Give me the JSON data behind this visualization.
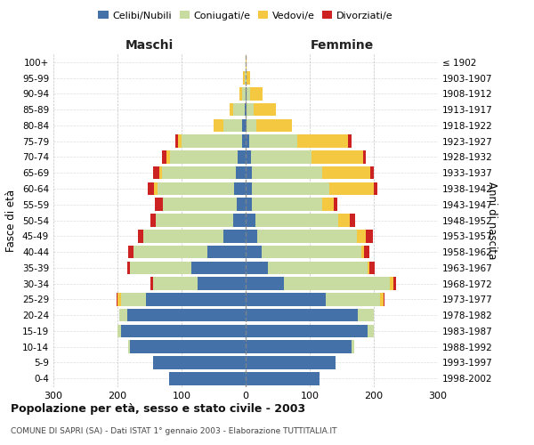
{
  "age_groups": [
    "0-4",
    "5-9",
    "10-14",
    "15-19",
    "20-24",
    "25-29",
    "30-34",
    "35-39",
    "40-44",
    "45-49",
    "50-54",
    "55-59",
    "60-64",
    "65-69",
    "70-74",
    "75-79",
    "80-84",
    "85-89",
    "90-94",
    "95-99",
    "100+"
  ],
  "birth_years": [
    "1998-2002",
    "1993-1997",
    "1988-1992",
    "1983-1987",
    "1978-1982",
    "1973-1977",
    "1968-1972",
    "1963-1967",
    "1958-1962",
    "1953-1957",
    "1948-1952",
    "1943-1947",
    "1938-1942",
    "1933-1937",
    "1928-1932",
    "1923-1927",
    "1918-1922",
    "1913-1917",
    "1908-1912",
    "1903-1907",
    "≤ 1902"
  ],
  "males": {
    "celibi": [
      120,
      145,
      180,
      195,
      185,
      155,
      75,
      85,
      60,
      35,
      20,
      14,
      18,
      15,
      13,
      5,
      5,
      2,
      0,
      0,
      0
    ],
    "coniugati": [
      0,
      0,
      3,
      5,
      12,
      40,
      70,
      95,
      115,
      125,
      120,
      115,
      120,
      115,
      105,
      95,
      30,
      18,
      5,
      2,
      0
    ],
    "vedovi": [
      0,
      0,
      0,
      0,
      0,
      5,
      0,
      0,
      0,
      0,
      0,
      0,
      5,
      5,
      5,
      5,
      15,
      5,
      5,
      2,
      0
    ],
    "divorziati": [
      0,
      0,
      0,
      0,
      0,
      2,
      3,
      5,
      8,
      8,
      8,
      12,
      10,
      10,
      8,
      5,
      0,
      0,
      0,
      0,
      0
    ]
  },
  "females": {
    "nubili": [
      115,
      140,
      165,
      190,
      175,
      125,
      60,
      35,
      25,
      18,
      15,
      10,
      10,
      10,
      8,
      5,
      2,
      2,
      2,
      0,
      0
    ],
    "coniugate": [
      0,
      0,
      5,
      10,
      25,
      85,
      165,
      155,
      155,
      155,
      130,
      110,
      120,
      110,
      95,
      75,
      15,
      10,
      5,
      2,
      0
    ],
    "vedove": [
      0,
      0,
      0,
      0,
      0,
      5,
      5,
      3,
      5,
      15,
      18,
      18,
      70,
      75,
      80,
      80,
      55,
      35,
      20,
      5,
      2
    ],
    "divorziate": [
      0,
      0,
      0,
      0,
      0,
      2,
      5,
      8,
      8,
      10,
      8,
      5,
      5,
      5,
      5,
      5,
      0,
      0,
      0,
      0,
      0
    ]
  },
  "colors": {
    "celibi_nubili": "#4472a8",
    "coniugati": "#c8dba0",
    "vedovi": "#f5c842",
    "divorziati": "#cc2222"
  },
  "title": "Popolazione per età, sesso e stato civile - 2003",
  "subtitle": "COMUNE DI SAPRI (SA) - Dati ISTAT 1° gennaio 2003 - Elaborazione TUTTITALIA.IT",
  "xlabel_left": "Maschi",
  "xlabel_right": "Femmine",
  "ylabel_left": "Fasce di età",
  "ylabel_right": "Anni di nascita",
  "legend_labels": [
    "Celibi/Nubili",
    "Coniugati/e",
    "Vedovi/e",
    "Divorziati/e"
  ],
  "xlim": 300,
  "background_color": "#ffffff",
  "grid_color": "#bbbbbb"
}
